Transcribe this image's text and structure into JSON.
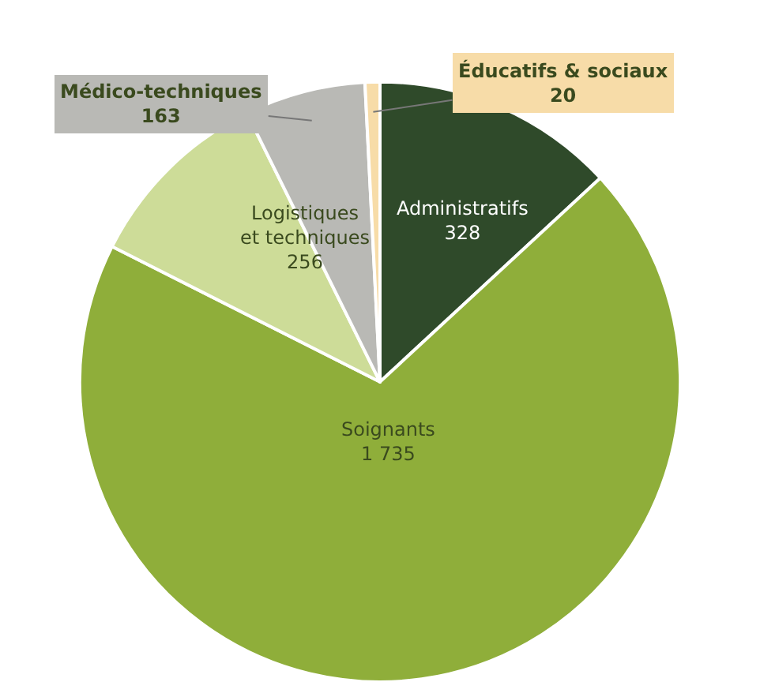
{
  "chart_data": {
    "type": "pie",
    "categories": [
      "Administratifs",
      "Soignants",
      "Logistiques\net techniques",
      "Médico-techniques",
      "Éducatifs & sociaux"
    ],
    "values": [
      328,
      1735,
      256,
      163,
      20
    ],
    "value_labels": [
      "328",
      "1 735",
      "256",
      "163",
      "20"
    ],
    "colors": [
      "#2f4a2a",
      "#8fae3a",
      "#cddc98",
      "#b9b9b5",
      "#f7dca8"
    ],
    "legend": false
  }
}
